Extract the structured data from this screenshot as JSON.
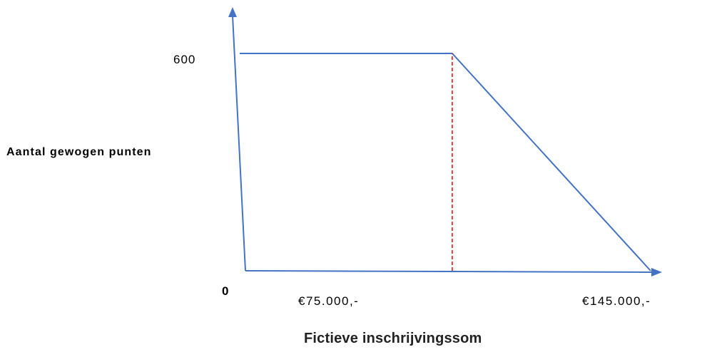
{
  "chart_data": {
    "type": "line",
    "xlabel": "Fictieve inschrijvingssom",
    "ylabel": "Aantal gewogen punten",
    "x_ticks": [
      "€75.000,-",
      "€145.000,-"
    ],
    "y_ticks": [
      "600"
    ],
    "origin_label": "0",
    "series": [
      {
        "x": [
          0,
          75000,
          145000
        ],
        "y": [
          600,
          600,
          0
        ]
      }
    ],
    "reference_line": {
      "x": 75000,
      "y_from": 0,
      "y_to": 600,
      "style": "dashed"
    },
    "xlim": [
      0,
      145000
    ],
    "ylim": [
      0,
      600
    ],
    "grid": false,
    "colors": {
      "line": "#4472c4",
      "axis": "#4472c4",
      "reference": "#ff0000"
    }
  }
}
